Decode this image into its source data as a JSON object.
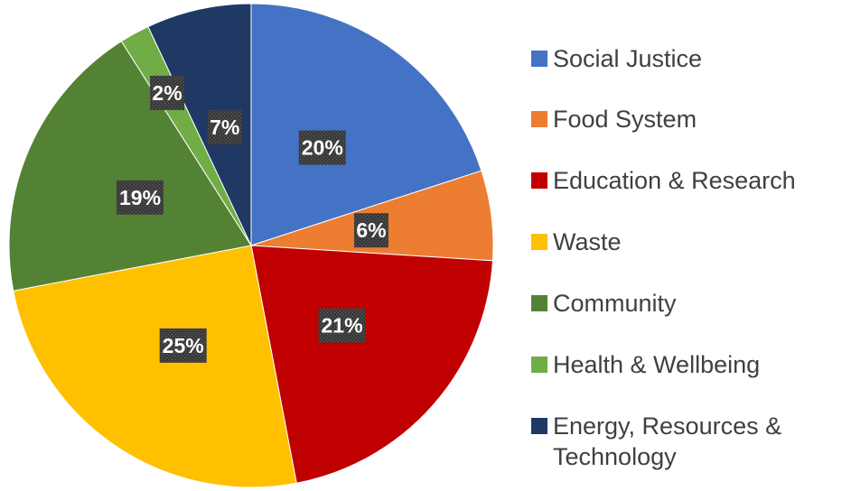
{
  "chart_data": {
    "type": "pie",
    "categories": [
      "Social Justice",
      "Food System",
      "Education & Research",
      "Waste",
      "Community",
      "Health & Wellbeing",
      "Energy, Resources & Technology"
    ],
    "values": [
      20,
      6,
      21,
      25,
      19,
      2,
      7
    ],
    "value_labels": [
      "20%",
      "6%",
      "21%",
      "25%",
      "19%",
      "2%",
      "7%"
    ],
    "colors": [
      "#4472c4",
      "#ed7d31",
      "#c00000",
      "#ffc000",
      "#548235",
      "#70ad47",
      "#203864"
    ],
    "legend": "right"
  }
}
